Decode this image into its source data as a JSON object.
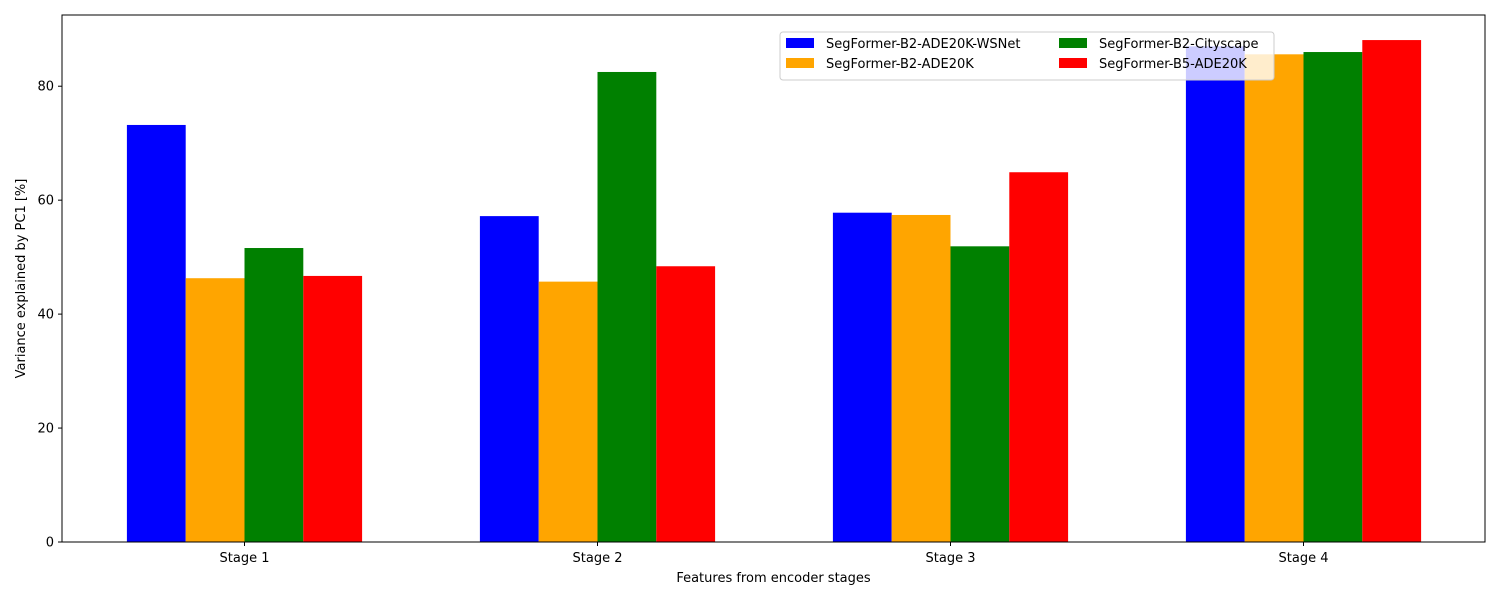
{
  "chart_data": {
    "type": "bar",
    "title": "",
    "xlabel": "Features from encoder stages",
    "ylabel": "Variance explained by PC1 [%]",
    "categories": [
      "Stage 1",
      "Stage 2",
      "Stage 3",
      "Stage 4"
    ],
    "ylim": [
      0,
      92.5
    ],
    "yticks": [
      0,
      20,
      40,
      60,
      80
    ],
    "grid": false,
    "legend_position": "top-right",
    "legend_columns": 2,
    "series": [
      {
        "name": "SegFormer-B2-ADE20K-WSNet",
        "color": "#0000ff",
        "values": [
          73.2,
          57.2,
          57.8,
          87.0
        ]
      },
      {
        "name": "SegFormer-B2-ADE20K",
        "color": "#ffa500",
        "values": [
          46.3,
          45.7,
          57.4,
          85.6
        ]
      },
      {
        "name": "SegFormer-B2-Cityscape",
        "color": "#008000",
        "values": [
          51.6,
          82.5,
          51.9,
          86.0
        ]
      },
      {
        "name": "SegFormer-B5-ADE20K",
        "color": "#ff0000",
        "values": [
          46.7,
          48.4,
          64.9,
          88.1
        ]
      }
    ]
  }
}
